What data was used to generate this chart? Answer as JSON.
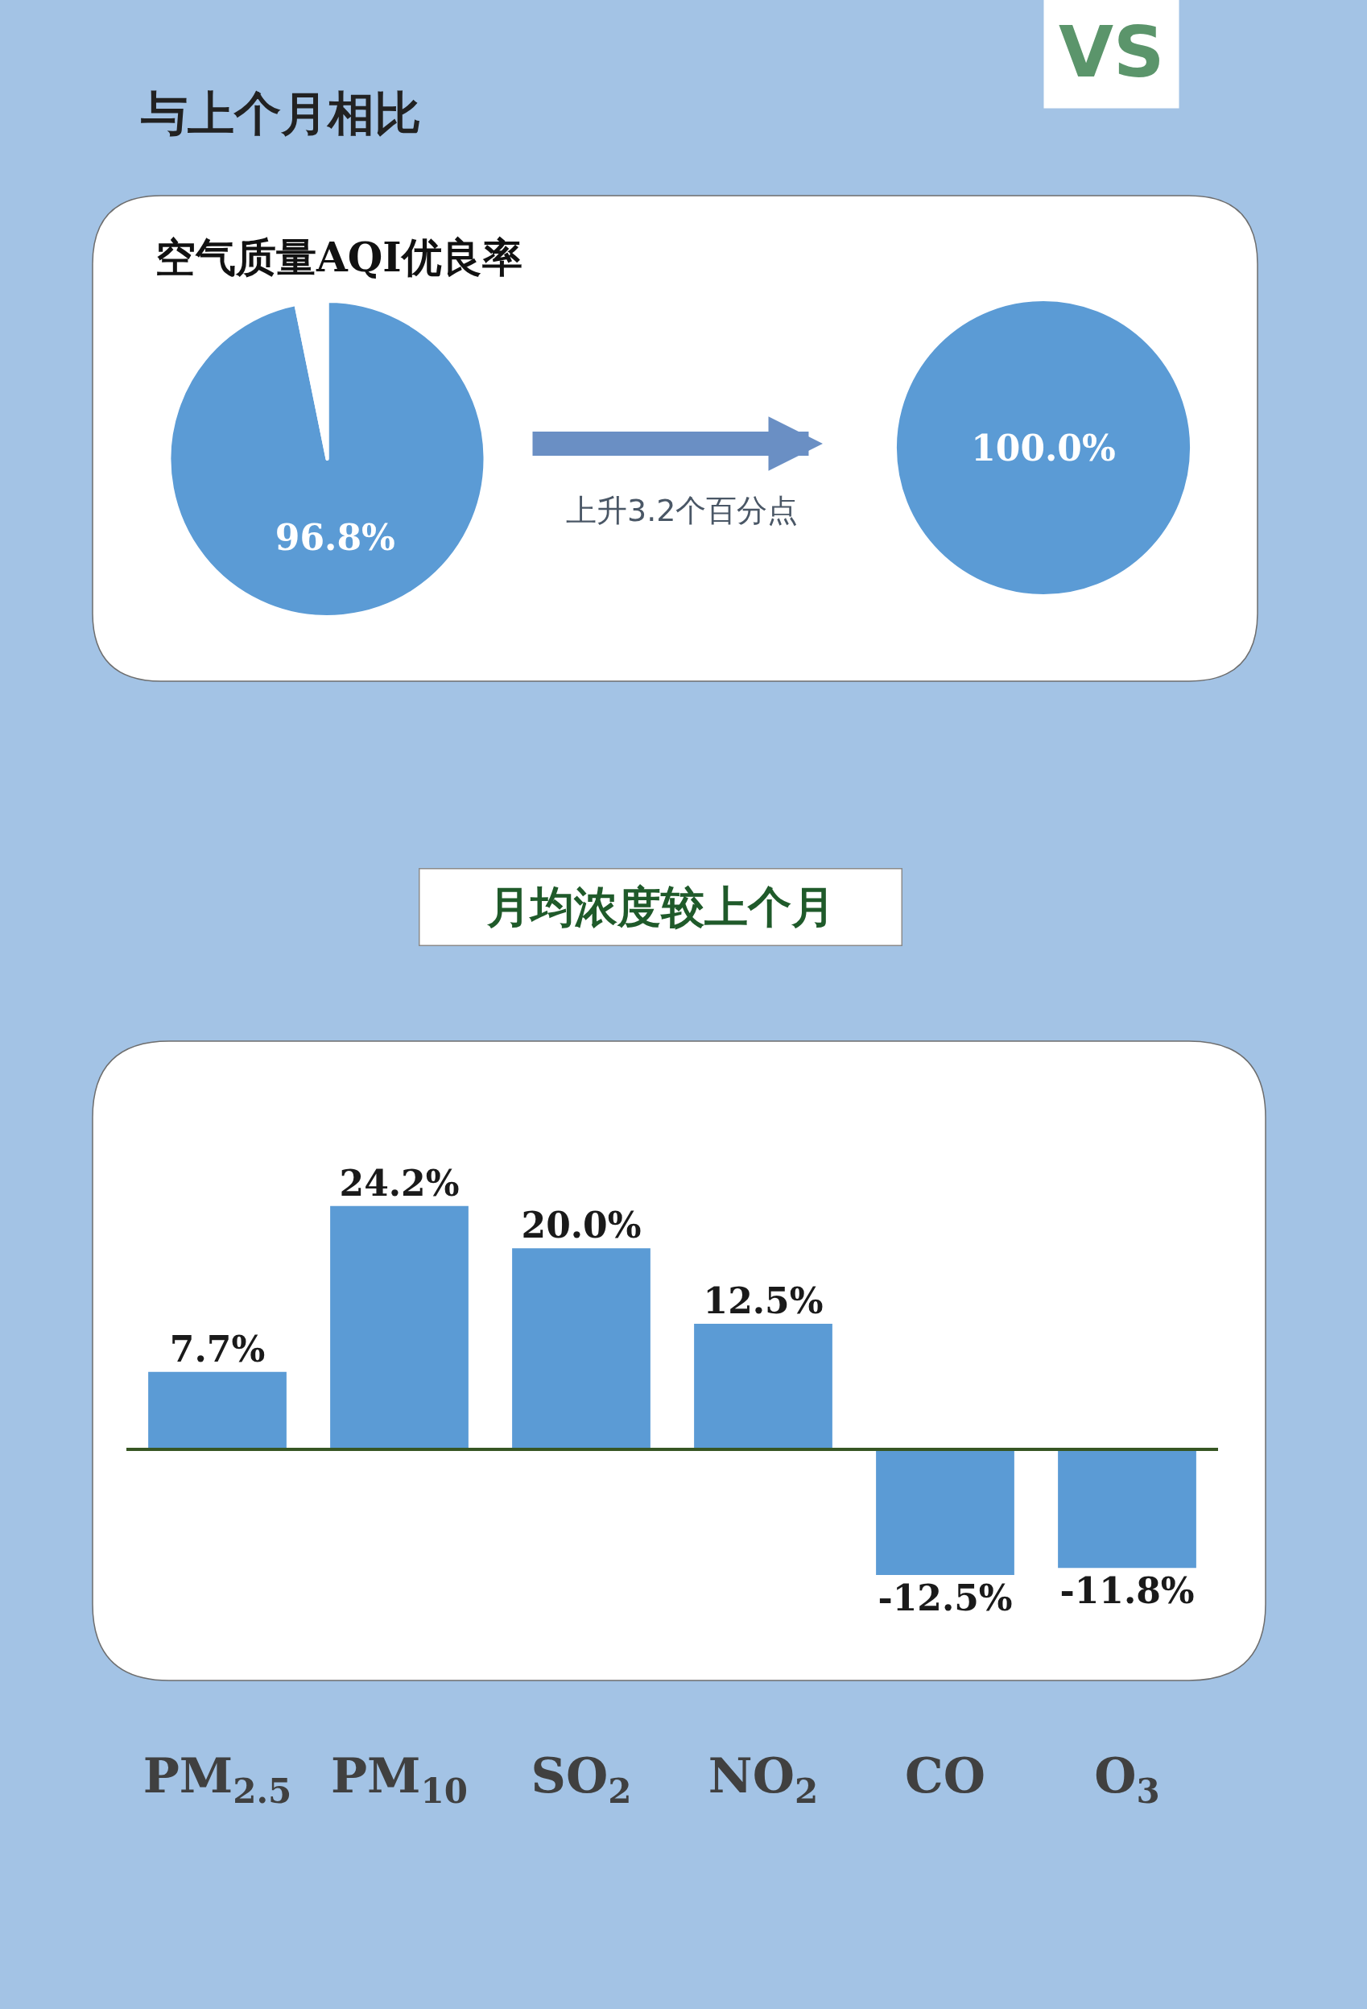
{
  "chart_data": [
    {
      "type": "pie",
      "title": "与上个月相比",
      "subtitle": "空气质量AQI优良率",
      "annotations": [
        "VS"
      ],
      "categories": [
        null,
        null
      ],
      "values": [
        96.8,
        3.2
      ],
      "colors": [
        "#5b9bd5",
        "#ffffff"
      ],
      "value_labels": [
        "96.8%",
        null
      ]
    },
    {
      "type": "pie",
      "annotations": [
        "上升3.2个百分点"
      ],
      "categories": [
        null
      ],
      "values": [
        100.0
      ],
      "colors": [
        "#5b9bd5"
      ],
      "value_labels": [
        "100.0%"
      ]
    },
    {
      "type": "bar",
      "title": "月均浓度较上个月",
      "categories": [
        "PM$_{2.5}$",
        "PM$_{10}$",
        "SO$_{2}$",
        "NO$_{2}$",
        "CO",
        "O$_{3}$"
      ],
      "values": [
        7.7,
        24.2,
        20.0,
        12.5,
        -12.5,
        -11.8
      ],
      "color": "#5b9bd5",
      "value_labels": [
        "7.7%",
        "24.2%",
        "20.0%",
        "12.5%",
        "-12.5%",
        "-11.8%"
      ],
      "ref_lines": [
        {
          "axis": "y",
          "value": 0,
          "color": "#375623"
        }
      ],
      "tick_labels": "x"
    }
  ]
}
